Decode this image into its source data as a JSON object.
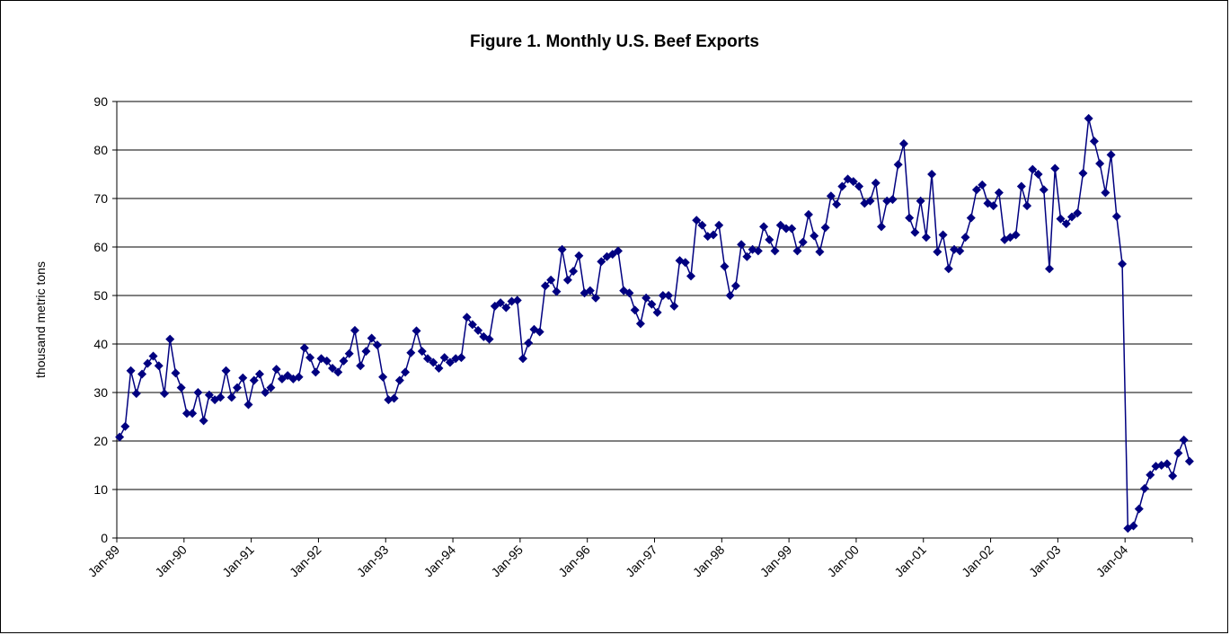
{
  "chart_data": {
    "type": "line",
    "title": "Figure 1. Monthly U.S. Beef Exports",
    "y_label": "thousand metric tons",
    "categories": [
      "Jan-89",
      null,
      null,
      null,
      null,
      null,
      null,
      null,
      null,
      null,
      null,
      null,
      "Jan-90",
      null,
      null,
      null,
      null,
      null,
      null,
      null,
      null,
      null,
      null,
      null,
      "Jan-91",
      null,
      null,
      null,
      null,
      null,
      null,
      null,
      null,
      null,
      null,
      null,
      "Jan-92",
      null,
      null,
      null,
      null,
      null,
      null,
      null,
      null,
      null,
      null,
      null,
      "Jan-93",
      null,
      null,
      null,
      null,
      null,
      null,
      null,
      null,
      null,
      null,
      null,
      "Jan-94",
      null,
      null,
      null,
      null,
      null,
      null,
      null,
      null,
      null,
      null,
      null,
      "Jan-95",
      null,
      null,
      null,
      null,
      null,
      null,
      null,
      null,
      null,
      null,
      null,
      "Jan-96",
      null,
      null,
      null,
      null,
      null,
      null,
      null,
      null,
      null,
      null,
      null,
      "Jan-97",
      null,
      null,
      null,
      null,
      null,
      null,
      null,
      null,
      null,
      null,
      null,
      "Jan-98",
      null,
      null,
      null,
      null,
      null,
      null,
      null,
      null,
      null,
      null,
      null,
      "Jan-99",
      null,
      null,
      null,
      null,
      null,
      null,
      null,
      null,
      null,
      null,
      null,
      "Jan-00",
      null,
      null,
      null,
      null,
      null,
      null,
      null,
      null,
      null,
      null,
      null,
      "Jan-01",
      null,
      null,
      null,
      null,
      null,
      null,
      null,
      null,
      null,
      null,
      null,
      "Jan-02",
      null,
      null,
      null,
      null,
      null,
      null,
      null,
      null,
      null,
      null,
      null,
      "Jan-03",
      null,
      null,
      null,
      null,
      null,
      null,
      null,
      null,
      null,
      null,
      null,
      "Jan-04",
      null,
      null,
      null,
      null,
      null,
      null,
      null,
      null,
      null,
      null,
      null
    ],
    "values": [
      20.8,
      23,
      34.5,
      29.8,
      33.8,
      36,
      37.5,
      35.5,
      29.8,
      41,
      34,
      31,
      25.7,
      25.7,
      30,
      24.2,
      29.5,
      28.5,
      29,
      34.5,
      29,
      31,
      33,
      27.5,
      32.5,
      33.8,
      30,
      31,
      34.8,
      32.8,
      33.5,
      32.8,
      33.2,
      39.2,
      37.2,
      34.2,
      37,
      36.5,
      35,
      34.2,
      36.5,
      38,
      42.8,
      35.5,
      38.5,
      41.2,
      39.8,
      33.2,
      28.5,
      28.8,
      32.5,
      34.2,
      38.2,
      42.7,
      38.5,
      37,
      36.2,
      35,
      37.2,
      36.2,
      37,
      37.2,
      45.5,
      44,
      42.8,
      41.5,
      41,
      47.8,
      48.5,
      47.5,
      48.8,
      49,
      37,
      40.2,
      43,
      42.5,
      52,
      53.2,
      50.8,
      59.5,
      53.2,
      55,
      58.2,
      50.5,
      51,
      49.5,
      57,
      58,
      58.5,
      59.2,
      51,
      50.5,
      47,
      44.2,
      49.5,
      48.2,
      46.5,
      50,
      50,
      47.8,
      57.2,
      56.8,
      54,
      65.5,
      64.5,
      62.2,
      62.5,
      64.5,
      56,
      50,
      52,
      60.5,
      58,
      59.5,
      59.2,
      64.2,
      61.5,
      59.2,
      64.5,
      63.8,
      63.8,
      59.2,
      61,
      66.7,
      62.3,
      59,
      64,
      70.5,
      68.8,
      72.5,
      74,
      73.5,
      72.5,
      69,
      69.5,
      73.2,
      64.2,
      69.5,
      69.8,
      77,
      81.3,
      66,
      63,
      69.5,
      62,
      75,
      59,
      62.5,
      55.5,
      59.5,
      59.2,
      62,
      66,
      71.8,
      72.8,
      69,
      68.5,
      71.2,
      61.5,
      62,
      62.5,
      72.5,
      68.5,
      76,
      75,
      71.8,
      55.5,
      76.2,
      65.8,
      64.8,
      66.2,
      67,
      75.2,
      86.5,
      81.8,
      77.2,
      71.2,
      79,
      66.3,
      56.5,
      2,
      2.5,
      6,
      10.2,
      13,
      14.8,
      15,
      15.3,
      12.8,
      17.5,
      20.2,
      15.8
    ],
    "color": "#000080",
    "ylim": [
      0,
      90
    ],
    "yticks": [
      0,
      10,
      20,
      30,
      40,
      50,
      60,
      70,
      80,
      90
    ],
    "grid": true
  }
}
